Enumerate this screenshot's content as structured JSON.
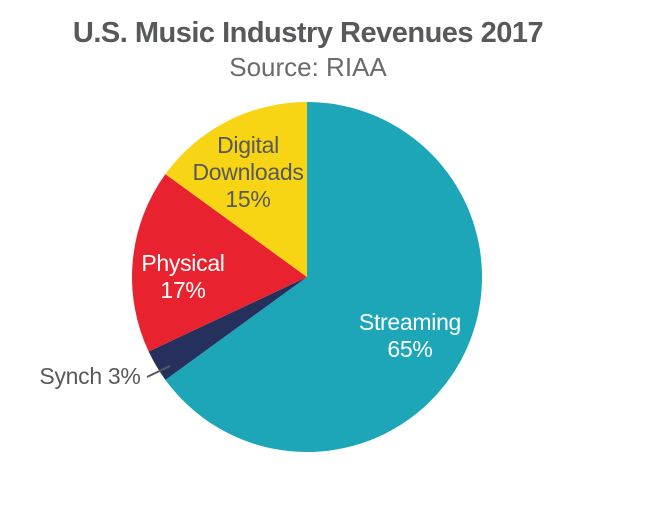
{
  "header": {
    "title": "U.S. Music Industry Revenues 2017",
    "subtitle": "Source: RIAA"
  },
  "colors": {
    "title_text": "#58595B",
    "label_dark_text": "#58595B",
    "label_light_text": "#FFFFFF",
    "leader_line": "#58595B",
    "background": "#FFFFFF"
  },
  "chart_data": {
    "type": "pie",
    "title": "U.S. Music Industry Revenues 2017",
    "subtitle": "Source: RIAA",
    "unit": "percent",
    "start_angle_deg": 0,
    "direction": "clockwise",
    "legend": "none",
    "categories": [
      "Streaming",
      "Synch",
      "Physical",
      "Digital Downloads"
    ],
    "values": [
      65,
      3,
      17,
      15
    ],
    "slices": [
      {
        "label": "Streaming",
        "value": 65,
        "color": "#1CA6B7",
        "text_color": "#FFFFFF",
        "label_lines": [
          "Streaming",
          "65%"
        ],
        "label_placement": "inside"
      },
      {
        "label": "Synch",
        "value": 3,
        "color": "#26305C",
        "text_color": "#58595B",
        "label_lines": [
          "Synch 3%"
        ],
        "label_placement": "outside-left-with-leader"
      },
      {
        "label": "Physical",
        "value": 17,
        "color": "#E9222F",
        "text_color": "#FFFFFF",
        "label_lines": [
          "Physical",
          "17%"
        ],
        "label_placement": "inside"
      },
      {
        "label": "Digital Downloads",
        "value": 15,
        "color": "#F7D414",
        "text_color": "#58595B",
        "label_lines": [
          "Digital",
          "Downloads",
          "15%"
        ],
        "label_placement": "inside"
      }
    ]
  }
}
